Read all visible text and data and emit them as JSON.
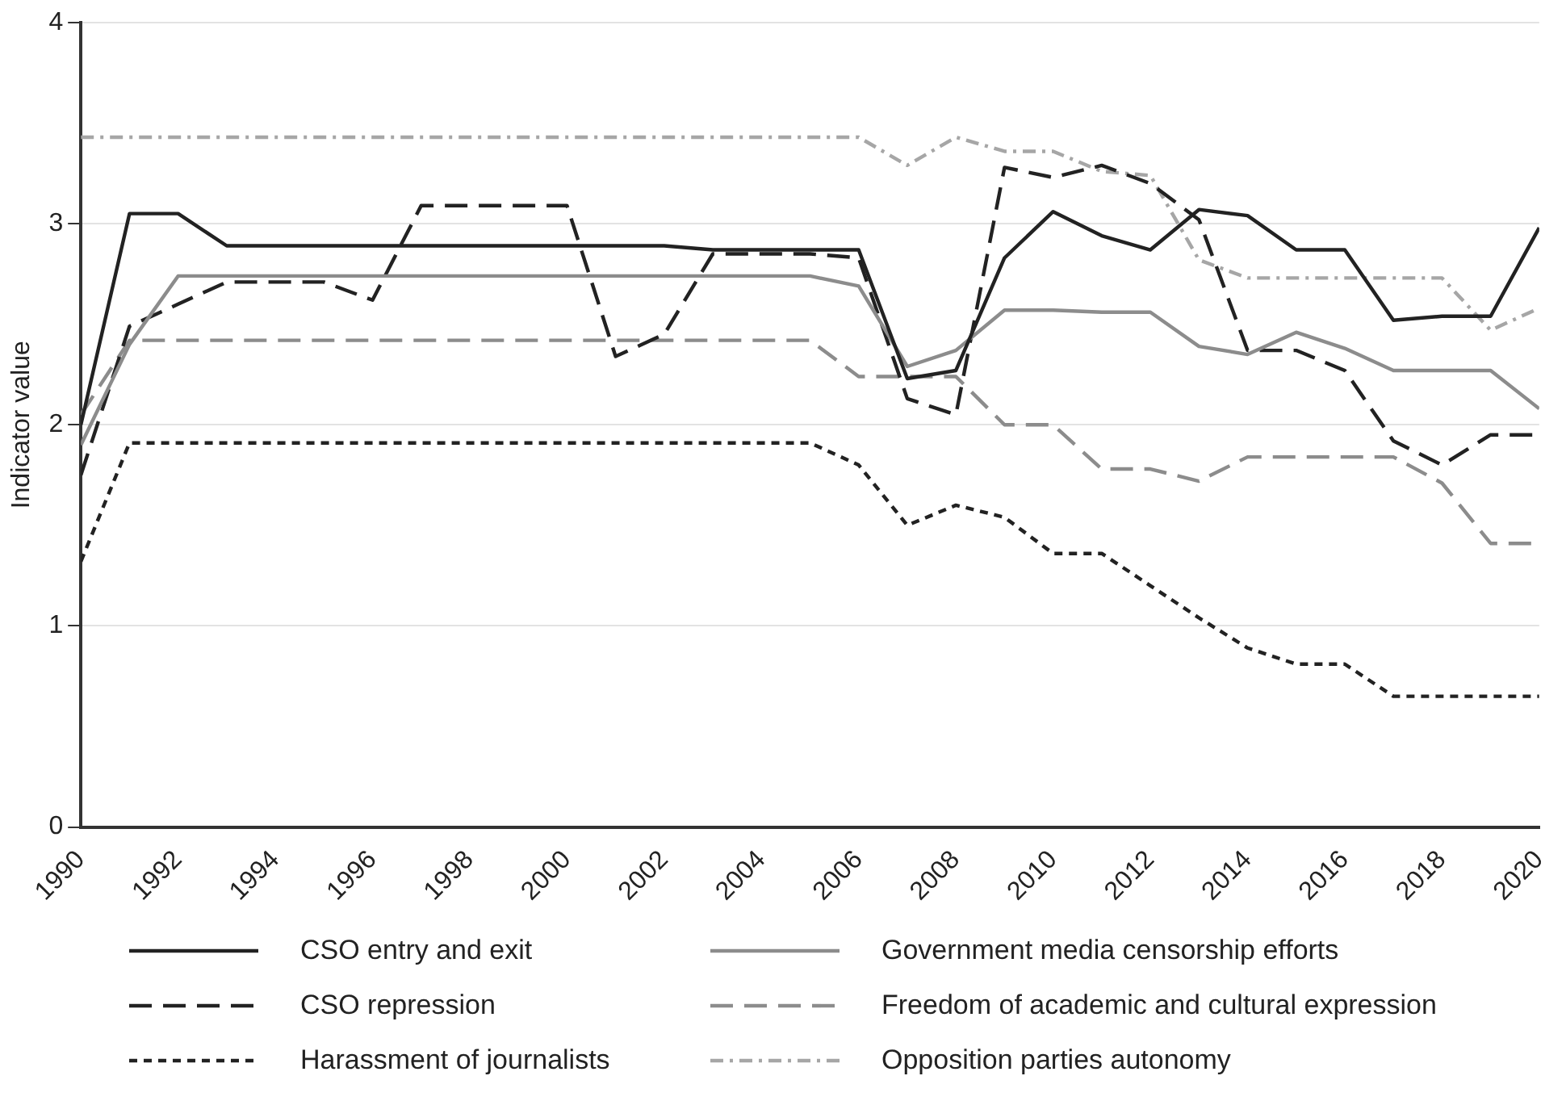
{
  "chart_data": {
    "type": "line",
    "ylabel": "Indicator value",
    "x": [
      1990,
      1991,
      1992,
      1993,
      1994,
      1995,
      1996,
      1997,
      1998,
      1999,
      2000,
      2001,
      2002,
      2003,
      2004,
      2005,
      2006,
      2007,
      2008,
      2009,
      2010,
      2011,
      2012,
      2013,
      2014,
      2015,
      2016,
      2017,
      2018,
      2019,
      2020
    ],
    "series": [
      {
        "name": "CSO entry and exit",
        "color": "#222222",
        "line_style": "solid",
        "values": [
          2.0,
          3.05,
          3.05,
          2.89,
          2.89,
          2.89,
          2.89,
          2.89,
          2.89,
          2.89,
          2.89,
          2.89,
          2.89,
          2.87,
          2.87,
          2.87,
          2.87,
          2.23,
          2.27,
          2.83,
          3.06,
          2.94,
          2.87,
          3.07,
          3.04,
          2.87,
          2.87,
          2.52,
          2.54,
          2.54,
          2.98
        ]
      },
      {
        "name": "Government media censorship efforts",
        "color": "#8c8c8c",
        "line_style": "solid",
        "values": [
          1.9,
          2.4,
          2.74,
          2.74,
          2.74,
          2.74,
          2.74,
          2.74,
          2.74,
          2.74,
          2.74,
          2.74,
          2.74,
          2.74,
          2.74,
          2.74,
          2.69,
          2.29,
          2.37,
          2.57,
          2.57,
          2.56,
          2.56,
          2.39,
          2.35,
          2.46,
          2.38,
          2.27,
          2.27,
          2.27,
          2.08
        ]
      },
      {
        "name": "CSO repression",
        "color": "#222222",
        "line_style": "dashed",
        "values": [
          1.75,
          2.49,
          2.6,
          2.71,
          2.71,
          2.71,
          2.62,
          3.09,
          3.09,
          3.09,
          3.09,
          2.34,
          2.45,
          2.85,
          2.85,
          2.85,
          2.83,
          2.13,
          2.05,
          3.28,
          3.23,
          3.29,
          3.2,
          3.02,
          2.37,
          2.37,
          2.27,
          1.92,
          1.8,
          1.95,
          1.95
        ]
      },
      {
        "name": "Freedom of academic and cultural expression",
        "color": "#8c8c8c",
        "line_style": "dashed",
        "values": [
          2.05,
          2.42,
          2.42,
          2.42,
          2.42,
          2.42,
          2.42,
          2.42,
          2.42,
          2.42,
          2.42,
          2.42,
          2.42,
          2.42,
          2.42,
          2.42,
          2.24,
          2.24,
          2.24,
          2.0,
          2.0,
          1.78,
          1.78,
          1.72,
          1.84,
          1.84,
          1.84,
          1.84,
          1.71,
          1.41,
          1.41
        ]
      },
      {
        "name": "Harassment of journalists",
        "color": "#222222",
        "line_style": "dotted",
        "values": [
          1.32,
          1.91,
          1.91,
          1.91,
          1.91,
          1.91,
          1.91,
          1.91,
          1.91,
          1.91,
          1.91,
          1.91,
          1.91,
          1.91,
          1.91,
          1.91,
          1.8,
          1.5,
          1.6,
          1.54,
          1.36,
          1.36,
          1.2,
          1.04,
          0.89,
          0.81,
          0.81,
          0.65,
          0.65,
          0.65,
          0.65
        ]
      },
      {
        "name": "Opposition parties autonomy",
        "color": "#a6a6a6",
        "line_style": "dashdot",
        "values": [
          3.43,
          3.43,
          3.43,
          3.43,
          3.43,
          3.43,
          3.43,
          3.43,
          3.43,
          3.43,
          3.43,
          3.43,
          3.43,
          3.43,
          3.43,
          3.43,
          3.43,
          3.29,
          3.43,
          3.36,
          3.36,
          3.26,
          3.24,
          2.82,
          2.73,
          2.73,
          2.73,
          2.73,
          2.73,
          2.47,
          2.58
        ]
      }
    ],
    "xlim": [
      1990,
      2020
    ],
    "xticks": [
      1990,
      1992,
      1994,
      1996,
      1998,
      2000,
      2002,
      2004,
      2006,
      2008,
      2010,
      2012,
      2014,
      2016,
      2018,
      2020
    ],
    "ylim": [
      0,
      4
    ],
    "yticks": [
      0,
      1,
      2,
      3,
      4
    ],
    "grid": "y",
    "legend": "bottom",
    "marker": "none"
  }
}
